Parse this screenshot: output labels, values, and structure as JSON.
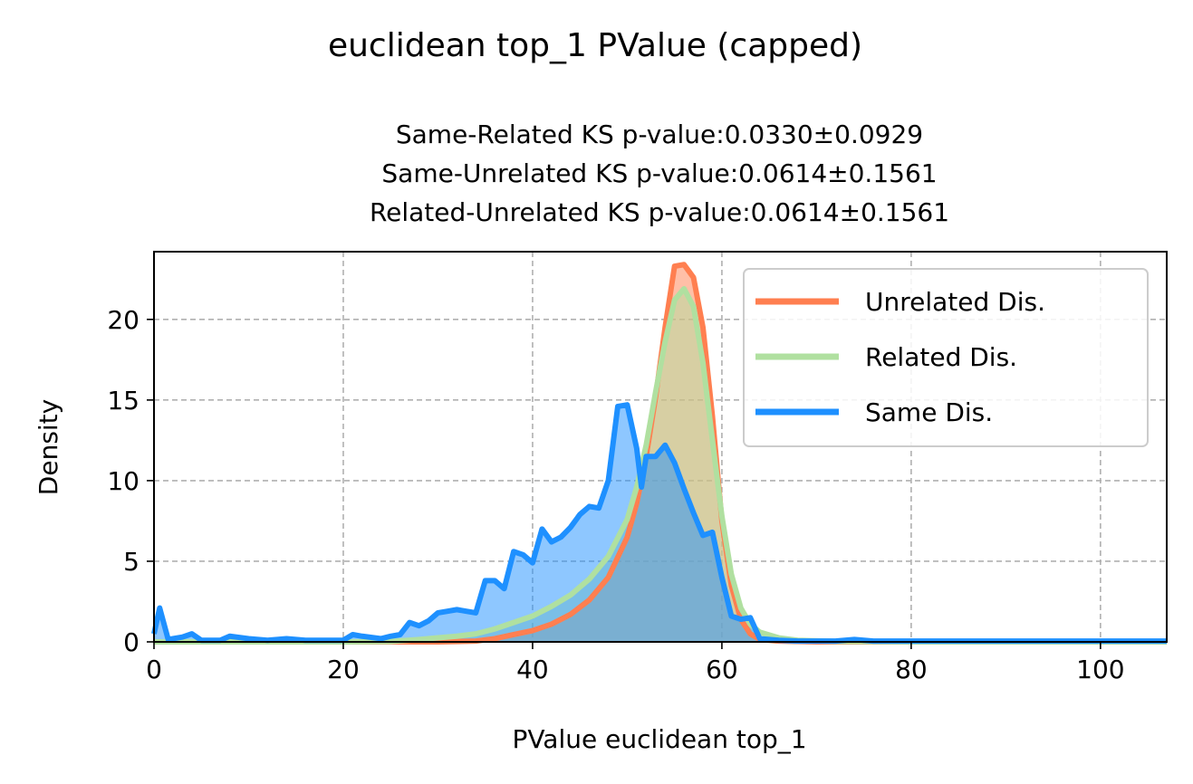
{
  "chart_data": {
    "type": "area",
    "suptitle": "euclidean top_1 PValue (capped)",
    "subtitle_lines": [
      "Same-Related KS p-value:0.0330±0.0929",
      "Same-Unrelated KS p-value:0.0614±0.1561",
      "Related-Unrelated KS p-value:0.0614±0.1561"
    ],
    "xlabel": "PValue euclidean top_1",
    "ylabel": "Density",
    "xlim": [
      0,
      107
    ],
    "ylim": [
      0,
      24.2
    ],
    "xticks": [
      0,
      20,
      40,
      60,
      80,
      100
    ],
    "yticks": [
      0,
      5,
      10,
      15,
      20
    ],
    "xtick_labels": [
      "0",
      "20",
      "40",
      "60",
      "80",
      "100"
    ],
    "ytick_labels": [
      "0",
      "5",
      "10",
      "15",
      "20"
    ],
    "grid": true,
    "legend_position": "top-right",
    "series": [
      {
        "name": "Unrelated Dis.",
        "color": "#ff7f50",
        "fill_color": "#ff7f50",
        "points": [
          [
            0,
            0
          ],
          [
            10,
            0
          ],
          [
            20,
            0
          ],
          [
            30,
            0
          ],
          [
            34,
            0.05
          ],
          [
            36,
            0.2
          ],
          [
            38,
            0.45
          ],
          [
            40,
            0.7
          ],
          [
            42,
            1.1
          ],
          [
            44,
            1.7
          ],
          [
            46,
            2.6
          ],
          [
            48,
            4.0
          ],
          [
            50,
            6.5
          ],
          [
            51,
            8.6
          ],
          [
            52,
            11.5
          ],
          [
            53,
            15.2
          ],
          [
            54,
            19.5
          ],
          [
            55,
            23.3
          ],
          [
            56,
            23.4
          ],
          [
            57,
            22.6
          ],
          [
            58,
            19.5
          ],
          [
            59,
            14.0
          ],
          [
            60,
            7.5
          ],
          [
            61,
            3.5
          ],
          [
            62,
            1.4
          ],
          [
            63,
            0.5
          ],
          [
            64,
            0.15
          ],
          [
            66,
            0.05
          ],
          [
            70,
            0
          ],
          [
            80,
            0
          ],
          [
            90,
            0
          ],
          [
            100,
            0
          ],
          [
            107,
            0
          ]
        ]
      },
      {
        "name": "Related Dis.",
        "color": "#b0e0a0",
        "fill_color": "#b0e0a0",
        "points": [
          [
            0,
            0
          ],
          [
            10,
            0
          ],
          [
            20,
            0
          ],
          [
            25,
            0.02
          ],
          [
            28,
            0.15
          ],
          [
            30,
            0.25
          ],
          [
            32,
            0.35
          ],
          [
            34,
            0.5
          ],
          [
            36,
            0.8
          ],
          [
            38,
            1.2
          ],
          [
            40,
            1.6
          ],
          [
            42,
            2.2
          ],
          [
            44,
            2.9
          ],
          [
            46,
            3.9
          ],
          [
            48,
            5.3
          ],
          [
            50,
            7.6
          ],
          [
            51,
            9.6
          ],
          [
            52,
            12.2
          ],
          [
            53,
            15.5
          ],
          [
            54,
            18.6
          ],
          [
            55,
            21.2
          ],
          [
            56,
            21.9
          ],
          [
            57,
            20.8
          ],
          [
            58,
            17.3
          ],
          [
            59,
            12.5
          ],
          [
            60,
            7.8
          ],
          [
            61,
            4.2
          ],
          [
            62,
            2.1
          ],
          [
            63,
            1.1
          ],
          [
            64,
            0.6
          ],
          [
            66,
            0.25
          ],
          [
            68,
            0.1
          ],
          [
            72,
            0.03
          ],
          [
            80,
            0
          ],
          [
            90,
            0
          ],
          [
            100,
            0
          ],
          [
            107,
            0
          ]
        ]
      },
      {
        "name": "Same Dis.",
        "color": "#1e90ff",
        "fill_color": "#1e90ff",
        "points": [
          [
            0,
            0.5
          ],
          [
            0.6,
            2.1
          ],
          [
            1.5,
            0.15
          ],
          [
            3,
            0.3
          ],
          [
            4,
            0.5
          ],
          [
            5,
            0.1
          ],
          [
            7,
            0.1
          ],
          [
            8,
            0.35
          ],
          [
            10,
            0.2
          ],
          [
            12,
            0.1
          ],
          [
            14,
            0.2
          ],
          [
            16,
            0.1
          ],
          [
            18,
            0.1
          ],
          [
            20,
            0.1
          ],
          [
            21,
            0.45
          ],
          [
            22,
            0.35
          ],
          [
            24,
            0.2
          ],
          [
            25,
            0.35
          ],
          [
            26,
            0.45
          ],
          [
            27,
            1.2
          ],
          [
            28,
            1.0
          ],
          [
            29,
            1.3
          ],
          [
            30,
            1.8
          ],
          [
            31,
            1.9
          ],
          [
            32,
            2.0
          ],
          [
            33,
            1.9
          ],
          [
            34,
            1.8
          ],
          [
            35,
            3.8
          ],
          [
            36,
            3.8
          ],
          [
            37,
            3.3
          ],
          [
            38,
            5.6
          ],
          [
            39,
            5.4
          ],
          [
            40,
            4.9
          ],
          [
            41,
            7.0
          ],
          [
            42,
            6.2
          ],
          [
            43,
            6.5
          ],
          [
            44,
            7.1
          ],
          [
            45,
            7.9
          ],
          [
            46,
            8.4
          ],
          [
            47,
            8.3
          ],
          [
            48,
            10.0
          ],
          [
            49,
            14.6
          ],
          [
            50,
            14.7
          ],
          [
            51,
            12.0
          ],
          [
            51.5,
            9.6
          ],
          [
            52,
            11.5
          ],
          [
            53,
            11.5
          ],
          [
            54,
            12.2
          ],
          [
            55,
            11.1
          ],
          [
            56,
            9.5
          ],
          [
            57,
            8.0
          ],
          [
            58,
            6.6
          ],
          [
            59,
            6.8
          ],
          [
            60,
            4.0
          ],
          [
            61,
            1.6
          ],
          [
            62,
            1.4
          ],
          [
            63,
            1.5
          ],
          [
            64,
            0.2
          ],
          [
            66,
            0.1
          ],
          [
            68,
            0.05
          ],
          [
            72,
            0.05
          ],
          [
            74,
            0.15
          ],
          [
            76,
            0.05
          ],
          [
            80,
            0.05
          ],
          [
            90,
            0.05
          ],
          [
            100,
            0.05
          ],
          [
            107,
            0.05
          ]
        ]
      }
    ]
  }
}
